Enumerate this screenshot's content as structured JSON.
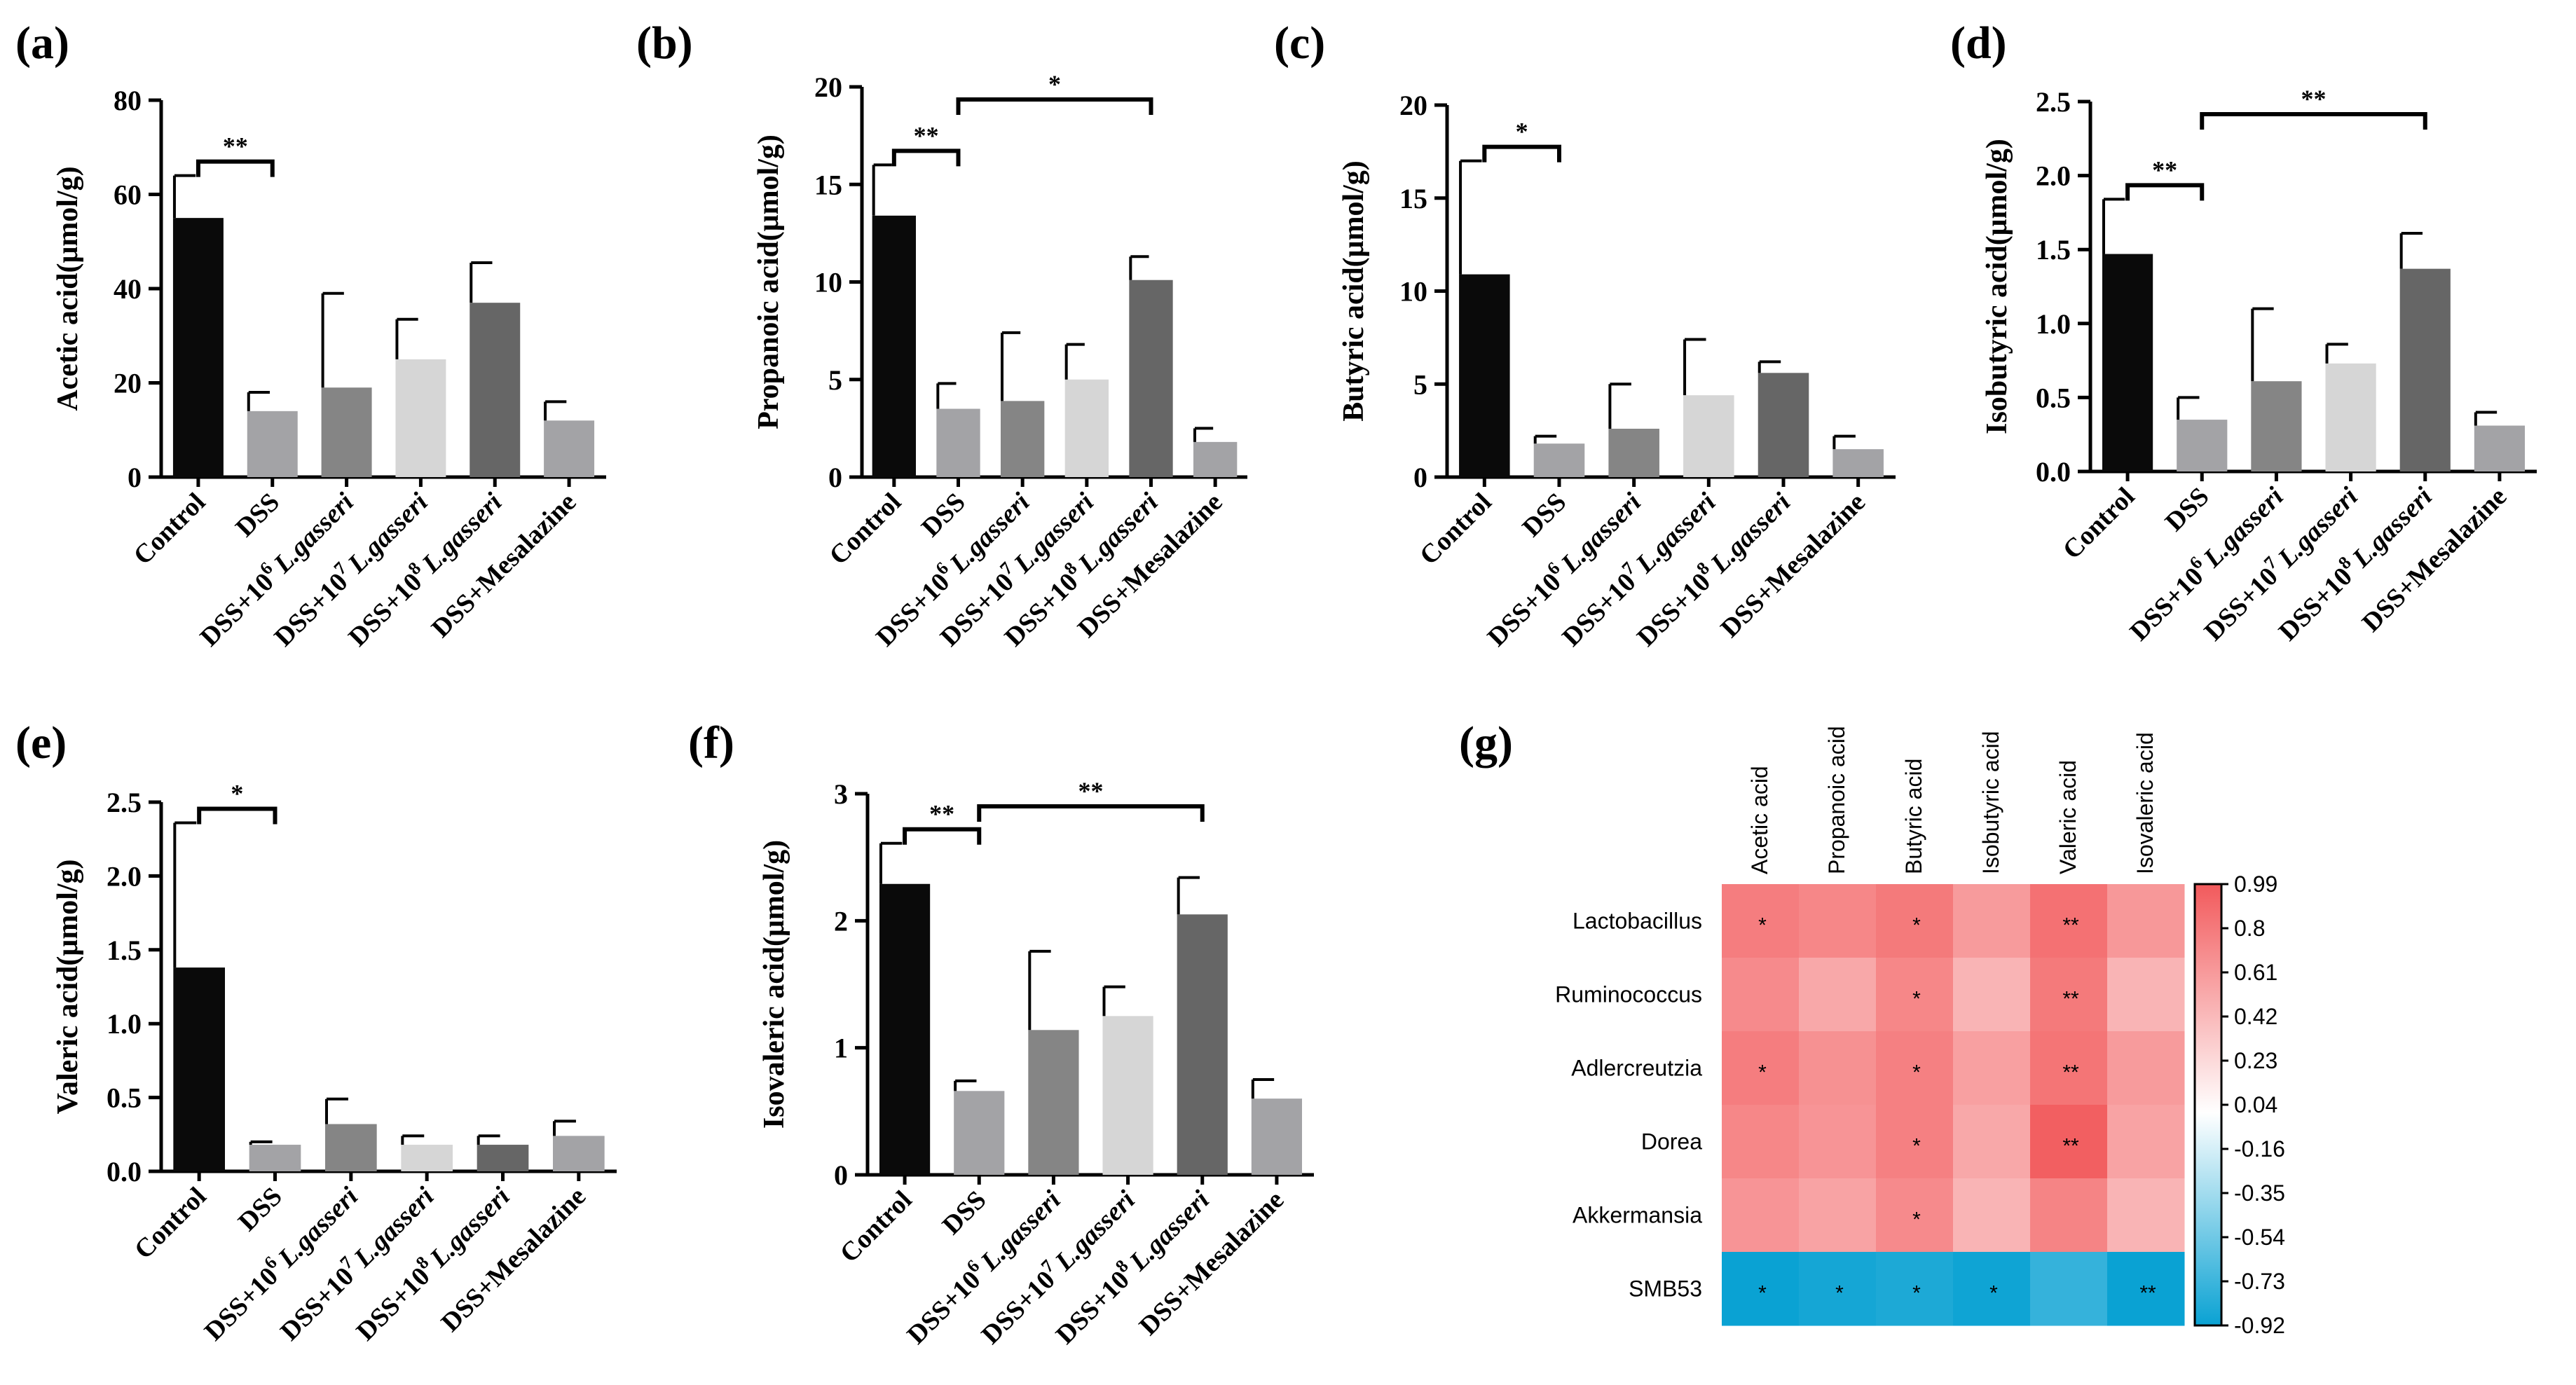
{
  "figure_label": "Bar charts of short-chain fatty acid levels with a correlation heatmap",
  "chart_data": [
    {
      "panel": "(a)",
      "type": "bar",
      "ylabel": "Acetic acid(μmol/g)",
      "ylim": [
        0,
        80
      ],
      "yticks": [
        "0",
        "20",
        "40",
        "60",
        "80"
      ],
      "categories": [
        {
          "base": "Control"
        },
        {
          "base": "DSS"
        },
        {
          "base": "DSS+10",
          "sup": "6",
          "ital": "L.gasseri"
        },
        {
          "base": "DSS+10",
          "sup": "7",
          "ital": "L.gasseri"
        },
        {
          "base": "DSS+10",
          "sup": "8",
          "ital": "L.gasseri"
        },
        {
          "base": "DSS+Mesalazine"
        }
      ],
      "values": [
        55,
        14,
        19,
        25,
        37,
        12
      ],
      "errors": [
        9,
        4,
        20,
        8.5,
        8.5,
        4
      ],
      "colors": [
        "#0a0a0a",
        "#a3a3a6",
        "#858585",
        "#d6d6d6",
        "#666666",
        "#a3a3a6"
      ],
      "significance": [
        {
          "from": 0,
          "to": 1,
          "label": "**"
        }
      ]
    },
    {
      "panel": "(b)",
      "type": "bar",
      "ylabel": "Propanoic acid(μmol/g)",
      "ylim": [
        0,
        20
      ],
      "yticks": [
        "0",
        "5",
        "10",
        "15",
        "20"
      ],
      "categories": [
        {
          "base": "Control"
        },
        {
          "base": "DSS"
        },
        {
          "base": "DSS+10",
          "sup": "6",
          "ital": "L.gasseri"
        },
        {
          "base": "DSS+10",
          "sup": "7",
          "ital": "L.gasseri"
        },
        {
          "base": "DSS+10",
          "sup": "8",
          "ital": "L.gasseri"
        },
        {
          "base": "DSS+Mesalazine"
        }
      ],
      "values": [
        13.4,
        3.5,
        3.9,
        5.0,
        10.1,
        1.8
      ],
      "errors": [
        2.6,
        1.3,
        3.5,
        1.8,
        1.2,
        0.7
      ],
      "colors": [
        "#0a0a0a",
        "#a3a3a6",
        "#858585",
        "#d6d6d6",
        "#666666",
        "#a3a3a6"
      ],
      "significance": [
        {
          "from": 0,
          "to": 1,
          "label": "**"
        },
        {
          "from": 1,
          "to": 4,
          "label": "*"
        }
      ]
    },
    {
      "panel": "(c)",
      "type": "bar",
      "ylabel": "Butyric acid(μmol/g)",
      "ylim": [
        0,
        20
      ],
      "yticks": [
        "0",
        "5",
        "10",
        "15",
        "20"
      ],
      "categories": [
        {
          "base": "Control"
        },
        {
          "base": "DSS"
        },
        {
          "base": "DSS+10",
          "sup": "6",
          "ital": "L.gasseri"
        },
        {
          "base": "DSS+10",
          "sup": "7",
          "ital": "L.gasseri"
        },
        {
          "base": "DSS+10",
          "sup": "8",
          "ital": "L.gasseri"
        },
        {
          "base": "DSS+Mesalazine"
        }
      ],
      "values": [
        10.9,
        1.8,
        2.6,
        4.4,
        5.6,
        1.5
      ],
      "errors": [
        6.1,
        0.4,
        2.4,
        3.0,
        0.6,
        0.7
      ],
      "colors": [
        "#0a0a0a",
        "#a3a3a6",
        "#858585",
        "#d6d6d6",
        "#666666",
        "#a3a3a6"
      ],
      "significance": [
        {
          "from": 0,
          "to": 1,
          "label": "*"
        }
      ]
    },
    {
      "panel": "(d)",
      "type": "bar",
      "ylabel": "Isobutyric acid(μmol/g)",
      "ylim": [
        0,
        2.5
      ],
      "yticks": [
        "0.0",
        "0.5",
        "1.0",
        "1.5",
        "2.0",
        "2.5"
      ],
      "categories": [
        {
          "base": "Control"
        },
        {
          "base": "DSS"
        },
        {
          "base": "DSS+10",
          "sup": "6",
          "ital": "L.gasseri"
        },
        {
          "base": "DSS+10",
          "sup": "7",
          "ital": "L.gasseri"
        },
        {
          "base": "DSS+10",
          "sup": "8",
          "ital": "L.gasseri"
        },
        {
          "base": "DSS+Mesalazine"
        }
      ],
      "values": [
        1.47,
        0.35,
        0.61,
        0.73,
        1.37,
        0.31
      ],
      "errors": [
        0.37,
        0.15,
        0.49,
        0.13,
        0.24,
        0.09
      ],
      "colors": [
        "#0a0a0a",
        "#a3a3a6",
        "#858585",
        "#d6d6d6",
        "#666666",
        "#a3a3a6"
      ],
      "significance": [
        {
          "from": 0,
          "to": 1,
          "label": "**"
        },
        {
          "from": 1,
          "to": 4,
          "label": "**"
        }
      ]
    },
    {
      "panel": "(e)",
      "type": "bar",
      "ylabel": "Valeric acid(μmol/g)",
      "ylim": [
        0,
        2.5
      ],
      "yticks": [
        "0.0",
        "0.5",
        "1.0",
        "1.5",
        "2.0",
        "2.5"
      ],
      "categories": [
        {
          "base": "Control"
        },
        {
          "base": "DSS"
        },
        {
          "base": "DSS+10",
          "sup": "6",
          "ital": "L.gasseri"
        },
        {
          "base": "DSS+10",
          "sup": "7",
          "ital": "L.gasseri"
        },
        {
          "base": "DSS+10",
          "sup": "8",
          "ital": "L.gasseri"
        },
        {
          "base": "DSS+Mesalazine"
        }
      ],
      "values": [
        1.38,
        0.18,
        0.32,
        0.18,
        0.18,
        0.24
      ],
      "errors": [
        0.98,
        0.02,
        0.17,
        0.06,
        0.06,
        0.1
      ],
      "colors": [
        "#0a0a0a",
        "#a3a3a6",
        "#858585",
        "#d6d6d6",
        "#666666",
        "#a3a3a6"
      ],
      "significance": [
        {
          "from": 0,
          "to": 1,
          "label": "*"
        }
      ]
    },
    {
      "panel": "(f)",
      "type": "bar",
      "ylabel": "Isovaleric acid(μmol/g)",
      "ylim": [
        0,
        3
      ],
      "yticks": [
        "0",
        "1",
        "2",
        "3"
      ],
      "categories": [
        {
          "base": "Control"
        },
        {
          "base": "DSS"
        },
        {
          "base": "DSS+10",
          "sup": "6",
          "ital": "L.gasseri"
        },
        {
          "base": "DSS+10",
          "sup": "7",
          "ital": "L.gasseri"
        },
        {
          "base": "DSS+10",
          "sup": "8",
          "ital": "L.gasseri"
        },
        {
          "base": "DSS+Mesalazine"
        }
      ],
      "values": [
        2.29,
        0.66,
        1.14,
        1.25,
        2.05,
        0.6
      ],
      "errors": [
        0.32,
        0.08,
        0.62,
        0.23,
        0.29,
        0.15
      ],
      "colors": [
        "#0a0a0a",
        "#a3a3a6",
        "#858585",
        "#d6d6d6",
        "#666666",
        "#a3a3a6"
      ],
      "significance": [
        {
          "from": 0,
          "to": 1,
          "label": "**"
        },
        {
          "from": 1,
          "to": 4,
          "label": "**"
        }
      ]
    },
    {
      "panel": "(g)",
      "type": "heatmap",
      "columns": [
        "Acetic acid",
        "Propanoic acid",
        "Butyric acid",
        "Isobutyric acid",
        "Valeric acid",
        "Isovaleric acid"
      ],
      "rows": [
        "Lactobacillus",
        "Ruminococcus",
        "Adlercreutzia",
        "Dorea",
        "Akkermansia",
        "SMB53"
      ],
      "values": [
        [
          0.78,
          0.72,
          0.8,
          0.6,
          0.85,
          0.62
        ],
        [
          0.7,
          0.52,
          0.72,
          0.45,
          0.8,
          0.45
        ],
        [
          0.78,
          0.66,
          0.76,
          0.57,
          0.83,
          0.6
        ],
        [
          0.72,
          0.64,
          0.76,
          0.52,
          0.96,
          0.55
        ],
        [
          0.64,
          0.55,
          0.7,
          0.45,
          0.74,
          0.45
        ],
        [
          -0.92,
          -0.88,
          -0.85,
          -0.9,
          -0.76,
          -0.95
        ]
      ],
      "stars": [
        [
          "*",
          "",
          "*",
          "",
          "**",
          ""
        ],
        [
          "",
          "",
          "*",
          "",
          "**",
          ""
        ],
        [
          "*",
          "",
          "*",
          "",
          "**",
          ""
        ],
        [
          "",
          "",
          "*",
          "",
          "**",
          ""
        ],
        [
          "",
          "",
          "*",
          "",
          "",
          ""
        ],
        [
          "*",
          "*",
          "*",
          "*",
          "",
          "**"
        ]
      ],
      "colorbar": {
        "min": -0.92,
        "max": 0.99,
        "ticks": [
          "0.99",
          "0.8",
          "0.61",
          "0.42",
          "0.23",
          "0.04",
          "-0.16",
          "-0.35",
          "-0.54",
          "-0.73",
          "-0.92"
        ],
        "colors": [
          "#0aa2d3",
          "#ffffff",
          "#f25a5c"
        ]
      }
    }
  ]
}
